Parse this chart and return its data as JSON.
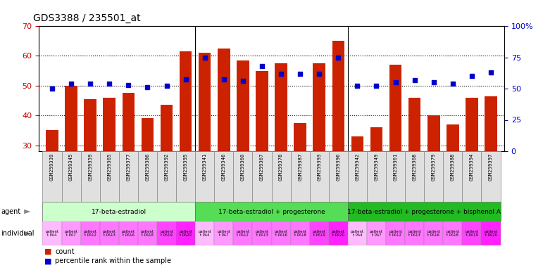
{
  "title": "GDS3388 / 235501_at",
  "samples": [
    "GSM259339",
    "GSM259345",
    "GSM259359",
    "GSM259365",
    "GSM259377",
    "GSM259386",
    "GSM259392",
    "GSM259395",
    "GSM259341",
    "GSM259346",
    "GSM259360",
    "GSM259367",
    "GSM259378",
    "GSM259387",
    "GSM259393",
    "GSM259396",
    "GSM259342",
    "GSM259349",
    "GSM259361",
    "GSM259368",
    "GSM259379",
    "GSM259388",
    "GSM259394",
    "GSM259397"
  ],
  "counts": [
    35.0,
    50.0,
    45.5,
    46.0,
    47.5,
    39.0,
    43.5,
    61.5,
    61.0,
    62.5,
    58.5,
    55.0,
    57.5,
    37.5,
    57.5,
    65.0,
    33.0,
    36.0,
    57.0,
    46.0,
    40.0,
    37.0,
    46.0,
    46.5
  ],
  "percentiles": [
    50,
    54,
    54,
    54,
    53,
    51,
    52.5,
    57.5,
    75,
    57.5,
    56,
    68,
    62,
    62,
    62,
    75,
    52,
    52,
    55,
    57,
    55,
    54,
    60,
    63
  ],
  "ylim_left": [
    28,
    70
  ],
  "ylim_right": [
    0,
    100
  ],
  "yticks_left": [
    30,
    40,
    50,
    60,
    70
  ],
  "yticks_right": [
    0,
    25,
    50,
    75,
    100
  ],
  "bar_color": "#CC2200",
  "dot_color": "#0000CC",
  "groups": [
    {
      "label": "17-beta-estradiol",
      "start": 0,
      "end": 8,
      "color": "#CCFFCC"
    },
    {
      "label": "17-beta-estradiol + progesterone",
      "start": 8,
      "end": 16,
      "color": "#55DD55"
    },
    {
      "label": "17-beta-estradiol + progesterone + bisphenol A",
      "start": 16,
      "end": 24,
      "color": "#22BB22"
    }
  ],
  "ind_labels": [
    "patient\nt PA4",
    "patient\nt PA7",
    "patient\nt PA12",
    "patient\nt PA13",
    "patient\nt PA16",
    "patient\nt PA18",
    "patient\nt PA19",
    "patient\nt PA20"
  ],
  "ind_colors_cycle": [
    "#FFBBFF",
    "#FF99FF",
    "#FF77FF",
    "#FF77FF",
    "#FF77FF",
    "#FF77FF",
    "#FF44FF",
    "#FF22FF"
  ],
  "agent_label": "agent",
  "individual_label": "individual",
  "left_axis_color": "#CC0000",
  "right_axis_color": "#0000CC",
  "grid_color": "black",
  "sample_box_color": "#E0E0E0"
}
